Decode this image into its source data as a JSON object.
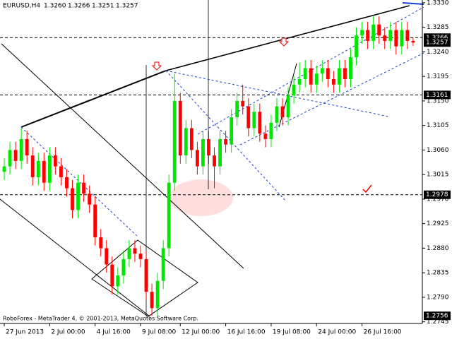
{
  "header": {
    "symbol": "EURUSD,H4",
    "ohlc": [
      "1.3260",
      "1.3266",
      "1.3251",
      "1.3257"
    ]
  },
  "footer": "RoboForex - MetaTrader 4, © 2001-2013, MetaQuotes Software Corp.",
  "chart_data": {
    "type": "candlestick",
    "bull_color": "#00e600",
    "bear_color": "#ff0000",
    "candles": [
      [
        1.302,
        1.3045,
        1.3005,
        1.303
      ],
      [
        1.303,
        1.3075,
        1.3015,
        1.306
      ],
      [
        1.306,
        1.3075,
        1.3025,
        1.304
      ],
      [
        1.304,
        1.31,
        1.3025,
        1.308
      ],
      [
        1.308,
        1.3095,
        1.3035,
        1.305
      ],
      [
        1.305,
        1.3065,
        1.2995,
        1.301
      ],
      [
        1.301,
        1.3055,
        1.2995,
        1.304
      ],
      [
        1.304,
        1.3055,
        1.2985,
        1.3
      ],
      [
        1.3,
        1.3065,
        1.2985,
        1.305
      ],
      [
        1.305,
        1.3065,
        1.3015,
        1.303
      ],
      [
        1.303,
        1.3045,
        1.2995,
        1.301
      ],
      [
        1.301,
        1.3025,
        1.2975,
        1.299
      ],
      [
        1.299,
        1.3005,
        1.2935,
        1.295
      ],
      [
        1.295,
        1.3015,
        1.2935,
        1.3
      ],
      [
        1.3,
        1.3015,
        1.2965,
        1.298
      ],
      [
        1.298,
        1.2995,
        1.2945,
        1.296
      ],
      [
        1.296,
        1.2975,
        1.2885,
        1.29
      ],
      [
        1.29,
        1.2915,
        1.2865,
        1.288
      ],
      [
        1.288,
        1.2895,
        1.2835,
        1.285
      ],
      [
        1.285,
        1.2865,
        1.2795,
        1.281
      ],
      [
        1.281,
        1.2845,
        1.2795,
        1.283
      ],
      [
        1.283,
        1.2875,
        1.2815,
        1.286
      ],
      [
        1.286,
        1.2895,
        1.2845,
        1.288
      ],
      [
        1.288,
        1.2895,
        1.2855,
        1.287
      ],
      [
        1.287,
        1.2885,
        1.2845,
        1.286
      ],
      [
        1.286,
        1.2875,
        1.2785,
        1.28
      ],
      [
        1.28,
        1.2815,
        1.2756,
        1.277
      ],
      [
        1.277,
        1.2835,
        1.2755,
        1.282
      ],
      [
        1.282,
        1.2895,
        1.2805,
        1.288
      ],
      [
        1.288,
        1.3015,
        1.2865,
        1.3
      ],
      [
        1.3,
        1.32,
        1.2985,
        1.315
      ],
      [
        1.315,
        1.3165,
        1.3035,
        1.305
      ],
      [
        1.305,
        1.3115,
        1.3035,
        1.31
      ],
      [
        1.31,
        1.3115,
        1.3045,
        1.306
      ],
      [
        1.306,
        1.3075,
        1.3015,
        1.303
      ],
      [
        1.303,
        1.3095,
        1.3015,
        1.308
      ],
      [
        1.308,
        1.3095,
        1.3035,
        1.305
      ],
      [
        1.305,
        1.3065,
        1.299,
        1.303
      ],
      [
        1.303,
        1.3095,
        1.3015,
        1.308
      ],
      [
        1.308,
        1.3095,
        1.3055,
        1.307
      ],
      [
        1.307,
        1.3135,
        1.3055,
        1.312
      ],
      [
        1.312,
        1.3165,
        1.3105,
        1.315
      ],
      [
        1.315,
        1.318,
        1.3125,
        1.314
      ],
      [
        1.314,
        1.3155,
        1.3085,
        1.31
      ],
      [
        1.31,
        1.3145,
        1.3085,
        1.313
      ],
      [
        1.313,
        1.3145,
        1.3075,
        1.309
      ],
      [
        1.309,
        1.3105,
        1.3065,
        1.308
      ],
      [
        1.308,
        1.3125,
        1.3065,
        1.311
      ],
      [
        1.311,
        1.3155,
        1.3095,
        1.314
      ],
      [
        1.314,
        1.3155,
        1.3105,
        1.312
      ],
      [
        1.312,
        1.3175,
        1.3105,
        1.316
      ],
      [
        1.316,
        1.3195,
        1.3145,
        1.318
      ],
      [
        1.318,
        1.322,
        1.3165,
        1.319
      ],
      [
        1.319,
        1.3225,
        1.3175,
        1.321
      ],
      [
        1.321,
        1.3225,
        1.3165,
        1.318
      ],
      [
        1.318,
        1.3215,
        1.3165,
        1.32
      ],
      [
        1.32,
        1.3225,
        1.3185,
        1.321
      ],
      [
        1.321,
        1.3225,
        1.3175,
        1.319
      ],
      [
        1.319,
        1.3205,
        1.3165,
        1.318
      ],
      [
        1.318,
        1.3225,
        1.3165,
        1.321
      ],
      [
        1.321,
        1.3225,
        1.3175,
        1.319
      ],
      [
        1.319,
        1.3245,
        1.3175,
        1.323
      ],
      [
        1.323,
        1.3285,
        1.3215,
        1.327
      ],
      [
        1.327,
        1.3295,
        1.3255,
        1.328
      ],
      [
        1.328,
        1.3295,
        1.3245,
        1.326
      ],
      [
        1.326,
        1.3305,
        1.3245,
        1.329
      ],
      [
        1.329,
        1.3305,
        1.3255,
        1.327
      ],
      [
        1.327,
        1.3285,
        1.3245,
        1.326
      ],
      [
        1.326,
        1.3295,
        1.3245,
        1.328
      ],
      [
        1.328,
        1.3295,
        1.3235,
        1.325
      ],
      [
        1.325,
        1.3295,
        1.3235,
        1.328
      ],
      [
        1.328,
        1.3295,
        1.3245,
        1.326
      ],
      [
        1.326,
        1.3266,
        1.3251,
        1.3257
      ]
    ],
    "xlim": [
      -0.5,
      73.5
    ],
    "xticks": [
      {
        "value": 0,
        "label": "27 Jun 2013"
      },
      {
        "value": 8,
        "label": "2 Jul 00:00"
      },
      {
        "value": 16,
        "label": "4 Jul 16:00"
      },
      {
        "value": 24,
        "label": "9 Jul 08:00"
      },
      {
        "value": 31,
        "label": "12 Jul 00:00"
      },
      {
        "value": 39,
        "label": "16 Jul 16:00"
      },
      {
        "value": 47,
        "label": "19 Jul 08:00"
      },
      {
        "value": 55,
        "label": "24 Jul 00:00"
      },
      {
        "value": 63,
        "label": "26 Jul 16:00"
      }
    ],
    "ylim": [
      1.2742,
      1.3335
    ],
    "yticks": [
      {
        "value": 1.333,
        "label": "1.3330"
      },
      1.3285,
      {
        "value": 1.324,
        "label": "1.3240"
      },
      1.3195,
      {
        "value": 1.315,
        "label": "1.3150"
      },
      1.3105,
      {
        "value": 1.306,
        "label": "1.3060"
      },
      1.3015,
      {
        "value": 1.297,
        "label": "1.2970"
      },
      1.2925,
      {
        "value": 1.288,
        "label": "1.2880"
      },
      1.2835,
      {
        "value": 1.279,
        "label": "1.2790"
      },
      1.2745
    ],
    "price_levels": [
      1.3266,
      1.3161,
      1.2978
    ],
    "price_markers": [
      1.3266,
      1.3257,
      1.3161,
      1.2978,
      1.2756
    ]
  }
}
